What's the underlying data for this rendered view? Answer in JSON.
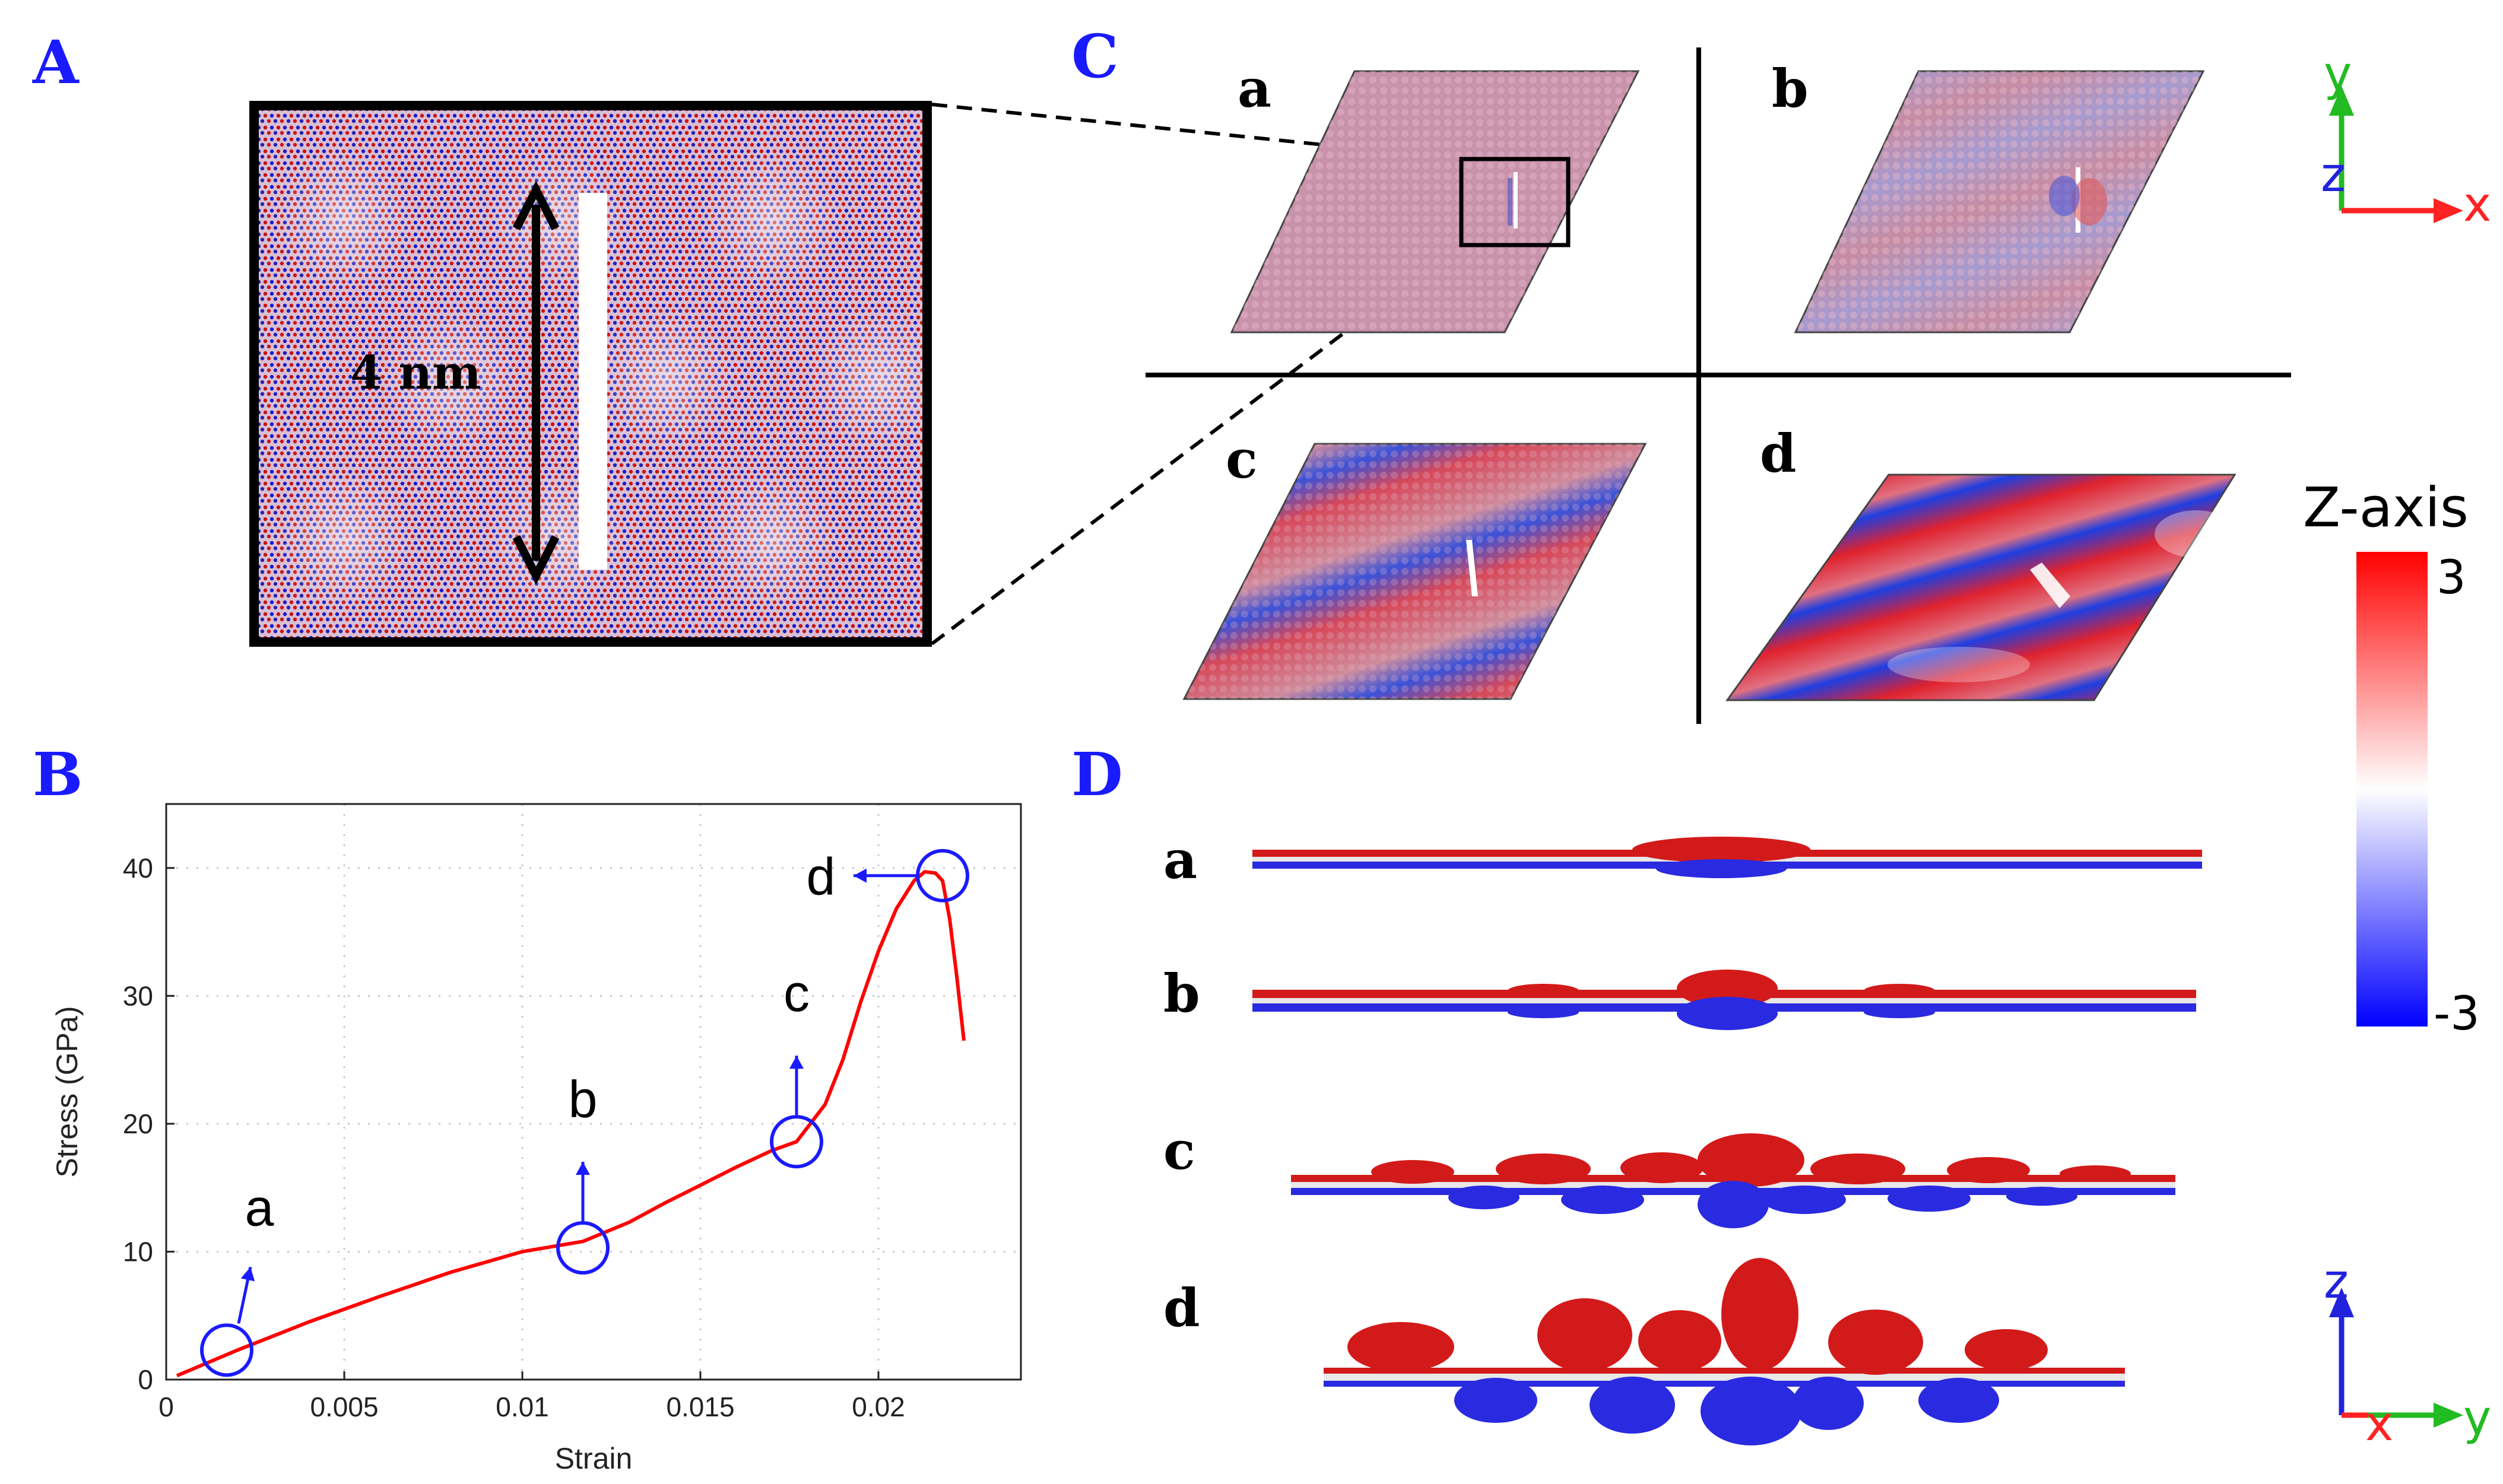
{
  "panels": {
    "A": {
      "letter": "A",
      "scale_label": "4 nm"
    },
    "B": {
      "letter": "B"
    },
    "C": {
      "letter": "C",
      "sublabels": [
        "a",
        "b",
        "c",
        "d"
      ],
      "axes": {
        "y": "y",
        "z": "z",
        "x": "x"
      }
    },
    "D": {
      "letter": "D",
      "sublabels": [
        "a",
        "b",
        "c",
        "d"
      ],
      "axes": {
        "z": "z",
        "x": "x",
        "y": "y"
      }
    }
  },
  "colorbar": {
    "title": "Z-axis",
    "max_label": "3",
    "min_label": "-3",
    "colors": {
      "top": "#ff0000",
      "mid": "#ffffff",
      "bottom": "#0000ff"
    }
  },
  "chart_data": {
    "type": "line",
    "title": "",
    "xlabel": "Strain",
    "ylabel": "Stress (GPa)",
    "xlim": [
      0,
      0.024
    ],
    "ylim": [
      0,
      45
    ],
    "xticks": [
      0,
      0.005,
      0.01,
      0.015,
      0.02
    ],
    "xtick_labels": [
      "0",
      "0.005",
      "0.01",
      "0.015",
      "0.02"
    ],
    "yticks": [
      0,
      10,
      20,
      30,
      40
    ],
    "ytick_labels": [
      "0",
      "10",
      "20",
      "30",
      "40"
    ],
    "grid": "dotted",
    "line_color": "#ff0000",
    "x": [
      0.0003,
      0.002,
      0.004,
      0.006,
      0.008,
      0.01,
      0.0117,
      0.013,
      0.014,
      0.015,
      0.016,
      0.017,
      0.0177,
      0.0185,
      0.019,
      0.0195,
      0.02,
      0.0205,
      0.021,
      0.0213,
      0.0216,
      0.0218,
      0.022,
      0.0222,
      0.0224
    ],
    "y": [
      0.3,
      2.3,
      4.5,
      6.5,
      8.4,
      10.0,
      10.8,
      12.3,
      13.8,
      15.2,
      16.6,
      17.9,
      18.6,
      21.5,
      25.0,
      29.5,
      33.5,
      36.8,
      39.0,
      39.7,
      39.6,
      39.0,
      36.0,
      31.5,
      26.5
    ],
    "markers": [
      {
        "label": "a",
        "x": 0.0017,
        "y": 2.3,
        "arrow_dir": "up-right"
      },
      {
        "label": "b",
        "x": 0.0117,
        "y": 10.3,
        "arrow_dir": "up"
      },
      {
        "label": "c",
        "x": 0.0177,
        "y": 18.6,
        "arrow_dir": "up"
      },
      {
        "label": "d",
        "x": 0.0218,
        "y": 39.4,
        "arrow_dir": "left"
      }
    ],
    "marker_color": "#1a1aff"
  }
}
